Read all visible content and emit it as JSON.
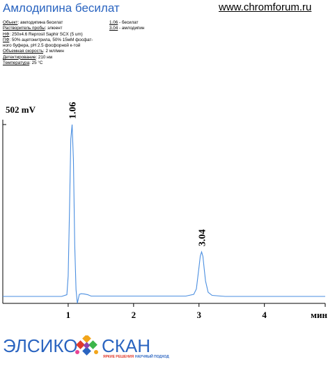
{
  "header": {
    "title": "Амлодипина бесилат",
    "site": "www.chromforum.ru"
  },
  "conditions": [
    {
      "key": "Объект",
      "value": ": амлодипина бесилат"
    },
    {
      "key": "Растворитель пробы",
      "value": ": элюент"
    },
    {
      "key": "НФ",
      "value": ": 250x4.6 Reprosil Saphir SCX (5 um)"
    },
    {
      "key": "ПФ",
      "value": ": 50% ацетонитрила, 50% 15мМ фосфат-"
    },
    {
      "key": "",
      "value": "ного буфера, pH 2.5 фосфорной к-той"
    },
    {
      "key": "Объемная скорость",
      "value": ": 2 мл/мин"
    },
    {
      "key": "Детектирование",
      "value": ": 210 нм"
    },
    {
      "key": "Температура",
      "value": ": 25 °C"
    }
  ],
  "peak_legend": [
    {
      "time": "1.06",
      "name": " - бесилат"
    },
    {
      "time": "3.04",
      "name": " - амлодипин"
    }
  ],
  "chart_data": {
    "type": "line",
    "title": "",
    "xlabel": "мин",
    "ylabel": "",
    "y_scale_label": "502 mV",
    "xlim": [
      0,
      4.93
    ],
    "ylim": [
      0,
      502
    ],
    "x_ticks": [
      1,
      2,
      3,
      4
    ],
    "x_tick_labels": [
      "1",
      "2",
      "3",
      "4"
    ],
    "grid": false,
    "line_color": "#4a8ee0",
    "peaks": [
      {
        "label": "1.06",
        "time": 1.06,
        "height": 502,
        "width": 0.025
      },
      {
        "label": "3.04",
        "time": 3.04,
        "height": 130,
        "width": 0.045
      }
    ],
    "series": [
      {
        "x": [
          0.0,
          0.9,
          0.98,
          1.0,
          1.02,
          1.04,
          1.06,
          1.08,
          1.1,
          1.12,
          1.14,
          1.17,
          1.2,
          1.25,
          1.3,
          1.35,
          2.8,
          2.92,
          2.96,
          3.0,
          3.02,
          3.04,
          3.06,
          3.08,
          3.1,
          3.14,
          3.2,
          3.4,
          4.93
        ],
        "y": [
          0,
          0,
          5,
          60,
          250,
          460,
          502,
          400,
          150,
          20,
          -20,
          6,
          8,
          7,
          5,
          1,
          1,
          6,
          22,
          85,
          118,
          130,
          117,
          80,
          45,
          12,
          3,
          0,
          0
        ]
      }
    ]
  },
  "logo": {
    "part1": "ЭЛСИКО",
    "part2": "СКАН",
    "tagline1": "ЯРКИЕ РЕШЕНИЯ",
    "tagline2": "НАУЧНЫЙ ПОДХОД",
    "colors": [
      "#e03a2a",
      "#f2a51a",
      "#3bb54a",
      "#2a64c0",
      "#8e44ad",
      "#e84393"
    ]
  }
}
